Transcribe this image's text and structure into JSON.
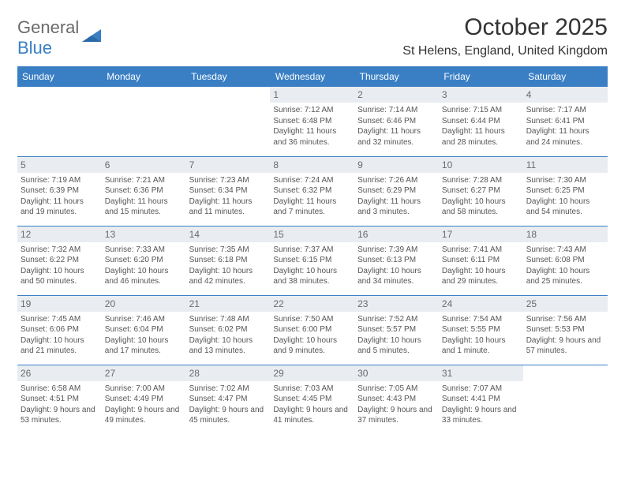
{
  "brand": {
    "word1": "General",
    "word2": "Blue"
  },
  "title": "October 2025",
  "location": "St Helens, England, United Kingdom",
  "colors": {
    "header_bg": "#3a7fc4",
    "daynum_bg": "#e9edf1",
    "border": "#3a7fc4",
    "text": "#555555",
    "title_text": "#333333",
    "logo_gray": "#6b6b6b",
    "logo_blue": "#3a7fc4",
    "page_bg": "#ffffff"
  },
  "day_headers": [
    "Sunday",
    "Monday",
    "Tuesday",
    "Wednesday",
    "Thursday",
    "Friday",
    "Saturday"
  ],
  "weeks": [
    [
      null,
      null,
      null,
      {
        "n": "1",
        "sunrise": "7:12 AM",
        "sunset": "6:48 PM",
        "daylight": "11 hours and 36 minutes."
      },
      {
        "n": "2",
        "sunrise": "7:14 AM",
        "sunset": "6:46 PM",
        "daylight": "11 hours and 32 minutes."
      },
      {
        "n": "3",
        "sunrise": "7:15 AM",
        "sunset": "6:44 PM",
        "daylight": "11 hours and 28 minutes."
      },
      {
        "n": "4",
        "sunrise": "7:17 AM",
        "sunset": "6:41 PM",
        "daylight": "11 hours and 24 minutes."
      }
    ],
    [
      {
        "n": "5",
        "sunrise": "7:19 AM",
        "sunset": "6:39 PM",
        "daylight": "11 hours and 19 minutes."
      },
      {
        "n": "6",
        "sunrise": "7:21 AM",
        "sunset": "6:36 PM",
        "daylight": "11 hours and 15 minutes."
      },
      {
        "n": "7",
        "sunrise": "7:23 AM",
        "sunset": "6:34 PM",
        "daylight": "11 hours and 11 minutes."
      },
      {
        "n": "8",
        "sunrise": "7:24 AM",
        "sunset": "6:32 PM",
        "daylight": "11 hours and 7 minutes."
      },
      {
        "n": "9",
        "sunrise": "7:26 AM",
        "sunset": "6:29 PM",
        "daylight": "11 hours and 3 minutes."
      },
      {
        "n": "10",
        "sunrise": "7:28 AM",
        "sunset": "6:27 PM",
        "daylight": "10 hours and 58 minutes."
      },
      {
        "n": "11",
        "sunrise": "7:30 AM",
        "sunset": "6:25 PM",
        "daylight": "10 hours and 54 minutes."
      }
    ],
    [
      {
        "n": "12",
        "sunrise": "7:32 AM",
        "sunset": "6:22 PM",
        "daylight": "10 hours and 50 minutes."
      },
      {
        "n": "13",
        "sunrise": "7:33 AM",
        "sunset": "6:20 PM",
        "daylight": "10 hours and 46 minutes."
      },
      {
        "n": "14",
        "sunrise": "7:35 AM",
        "sunset": "6:18 PM",
        "daylight": "10 hours and 42 minutes."
      },
      {
        "n": "15",
        "sunrise": "7:37 AM",
        "sunset": "6:15 PM",
        "daylight": "10 hours and 38 minutes."
      },
      {
        "n": "16",
        "sunrise": "7:39 AM",
        "sunset": "6:13 PM",
        "daylight": "10 hours and 34 minutes."
      },
      {
        "n": "17",
        "sunrise": "7:41 AM",
        "sunset": "6:11 PM",
        "daylight": "10 hours and 29 minutes."
      },
      {
        "n": "18",
        "sunrise": "7:43 AM",
        "sunset": "6:08 PM",
        "daylight": "10 hours and 25 minutes."
      }
    ],
    [
      {
        "n": "19",
        "sunrise": "7:45 AM",
        "sunset": "6:06 PM",
        "daylight": "10 hours and 21 minutes."
      },
      {
        "n": "20",
        "sunrise": "7:46 AM",
        "sunset": "6:04 PM",
        "daylight": "10 hours and 17 minutes."
      },
      {
        "n": "21",
        "sunrise": "7:48 AM",
        "sunset": "6:02 PM",
        "daylight": "10 hours and 13 minutes."
      },
      {
        "n": "22",
        "sunrise": "7:50 AM",
        "sunset": "6:00 PM",
        "daylight": "10 hours and 9 minutes."
      },
      {
        "n": "23",
        "sunrise": "7:52 AM",
        "sunset": "5:57 PM",
        "daylight": "10 hours and 5 minutes."
      },
      {
        "n": "24",
        "sunrise": "7:54 AM",
        "sunset": "5:55 PM",
        "daylight": "10 hours and 1 minute."
      },
      {
        "n": "25",
        "sunrise": "7:56 AM",
        "sunset": "5:53 PM",
        "daylight": "9 hours and 57 minutes."
      }
    ],
    [
      {
        "n": "26",
        "sunrise": "6:58 AM",
        "sunset": "4:51 PM",
        "daylight": "9 hours and 53 minutes."
      },
      {
        "n": "27",
        "sunrise": "7:00 AM",
        "sunset": "4:49 PM",
        "daylight": "9 hours and 49 minutes."
      },
      {
        "n": "28",
        "sunrise": "7:02 AM",
        "sunset": "4:47 PM",
        "daylight": "9 hours and 45 minutes."
      },
      {
        "n": "29",
        "sunrise": "7:03 AM",
        "sunset": "4:45 PM",
        "daylight": "9 hours and 41 minutes."
      },
      {
        "n": "30",
        "sunrise": "7:05 AM",
        "sunset": "4:43 PM",
        "daylight": "9 hours and 37 minutes."
      },
      {
        "n": "31",
        "sunrise": "7:07 AM",
        "sunset": "4:41 PM",
        "daylight": "9 hours and 33 minutes."
      },
      null
    ]
  ],
  "labels": {
    "sunrise_prefix": "Sunrise: ",
    "sunset_prefix": "Sunset: ",
    "daylight_prefix": "Daylight: "
  }
}
